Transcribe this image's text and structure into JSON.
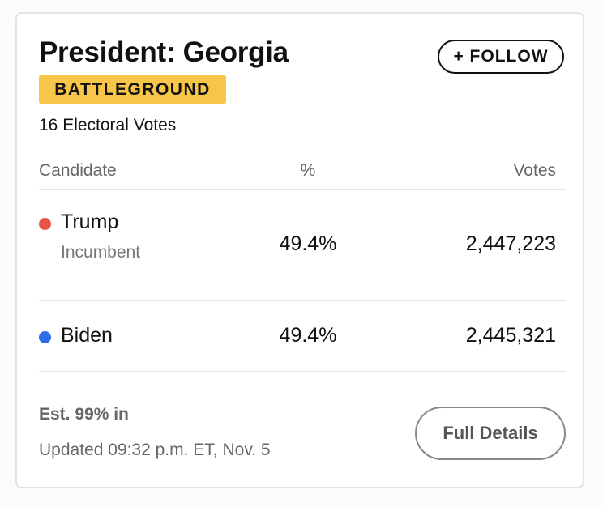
{
  "header": {
    "title": "President: Georgia",
    "badge": "BATTLEGROUND",
    "subtitle": "16 Electoral Votes",
    "follow_button": "+ FOLLOW"
  },
  "table": {
    "columns": [
      "Candidate",
      "%",
      "Votes"
    ],
    "rows": [
      {
        "name": "Trump",
        "note": "Incumbent",
        "percent": "49.4%",
        "votes": "2,447,223",
        "color": "#e8534a"
      },
      {
        "name": "Biden",
        "note": null,
        "percent": "49.4%",
        "votes": "2,445,321",
        "color": "#2f6de8"
      }
    ]
  },
  "footer": {
    "reporting": "Est. 99% in",
    "updated": "Updated 09:32 p.m. ET, Nov. 5",
    "details_button": "Full Details"
  }
}
